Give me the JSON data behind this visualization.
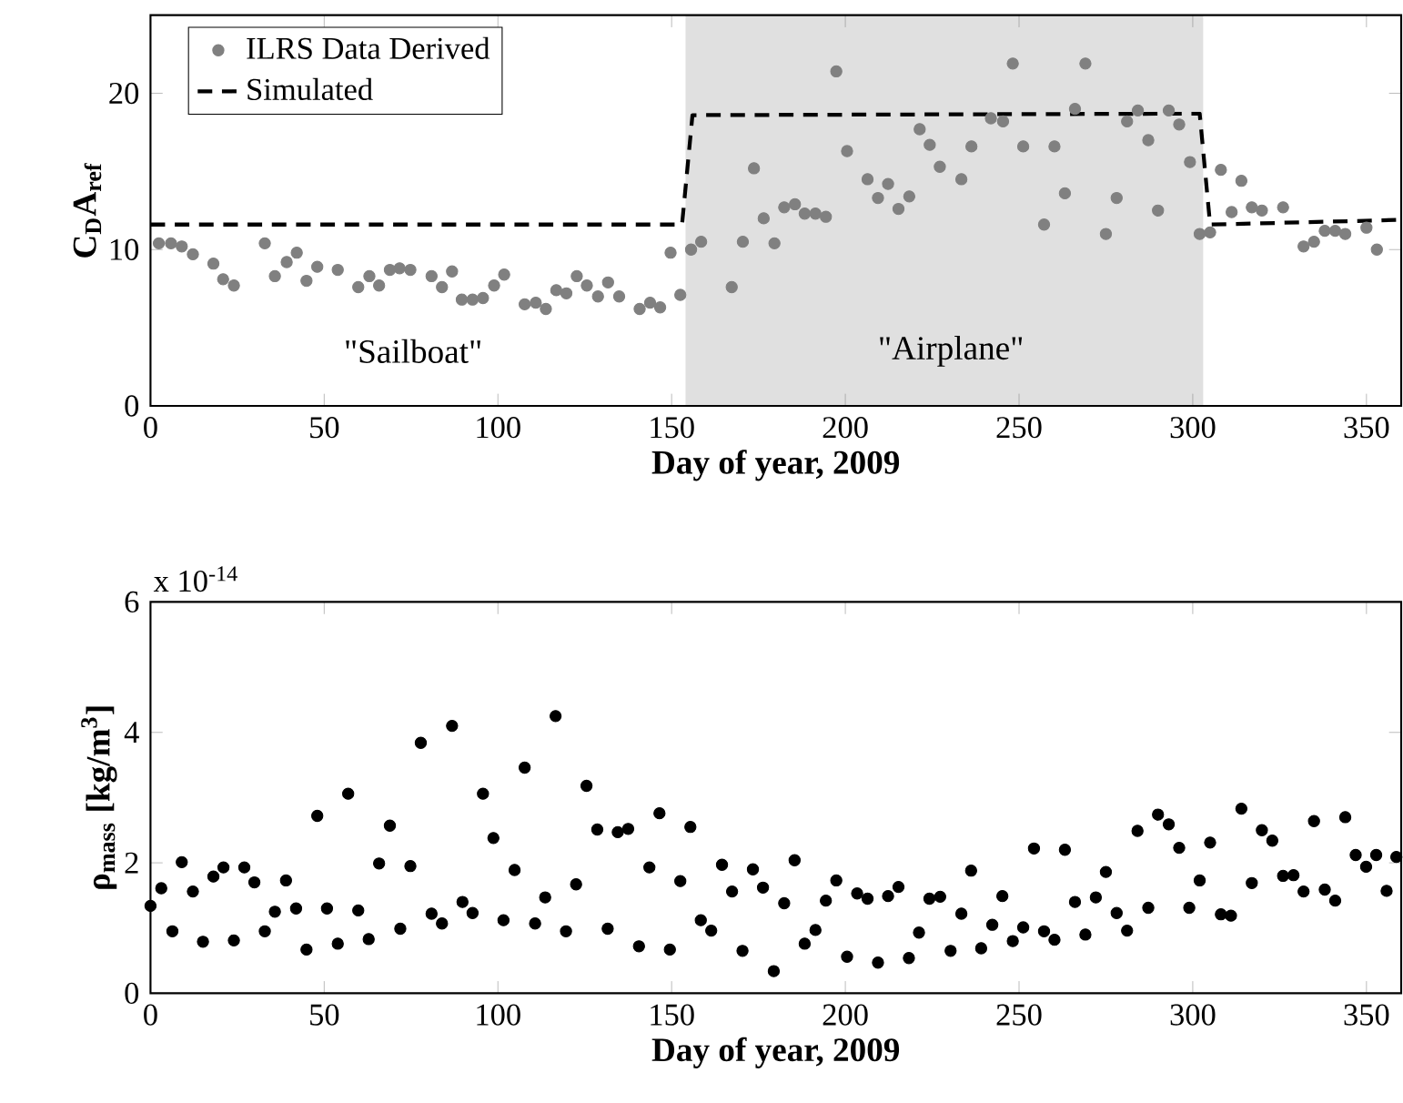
{
  "chart_data": [
    {
      "type": "scatter",
      "xlabel": "Day of year, 2009",
      "ylabel": "C$_{D}$A$_{ref}$",
      "xlim": [
        0,
        360
      ],
      "ylim": [
        0,
        25
      ],
      "xticks": [
        0,
        50,
        100,
        150,
        200,
        250,
        300,
        350
      ],
      "yticks": [
        0,
        10,
        20
      ],
      "legend": "top left",
      "marker": "circle",
      "bands": [
        {
          "axis": "x",
          "from": 154,
          "to": 303,
          "color": "#e0e0e0"
        }
      ],
      "annotations": [
        "\"Sailboat\"",
        "\"Airplane\""
      ],
      "series": [
        {
          "name": "ILRS Data Derived",
          "type": "scatter",
          "color": "#808080",
          "x": [
            2.4,
            5.9,
            9.0,
            12.2,
            18.1,
            20.9,
            24.0,
            32.9,
            35.8,
            39.2,
            42.1,
            44.9,
            48.0,
            53.9,
            59.8,
            63.0,
            65.8,
            68.9,
            71.7,
            74.8,
            80.9,
            83.9,
            86.8,
            89.6,
            92.7,
            95.7,
            98.9,
            101.8,
            107.7,
            110.9,
            113.8,
            116.8,
            119.7,
            122.7,
            125.6,
            128.8,
            131.7,
            134.9,
            140.8,
            143.8,
            146.7,
            149.7,
            152.5,
            155.6,
            158.5,
            167.3,
            170.5,
            173.7,
            176.5,
            179.6,
            182.4,
            185.5,
            188.3,
            191.4,
            194.4,
            197.4,
            200.5,
            206.4,
            209.4,
            212.3,
            215.3,
            218.4,
            221.4,
            224.3,
            227.2,
            233.4,
            236.3,
            241.9,
            245.4,
            248.2,
            251.2,
            257.2,
            260.2,
            263.2,
            266.1,
            269.1,
            275.0,
            278.1,
            281.1,
            284.2,
            287.2,
            290.0,
            293.1,
            296.1,
            299.2,
            302.0,
            305.0,
            308.1,
            311.2,
            314.0,
            317.0,
            319.9,
            326.0,
            331.9,
            334.9,
            338.0,
            341.0,
            343.9,
            350.0,
            353.0
          ],
          "values": [
            10.4,
            10.4,
            10.2,
            9.7,
            9.1,
            8.1,
            7.7,
            10.4,
            8.3,
            9.2,
            9.8,
            8.0,
            8.9,
            8.7,
            7.6,
            8.3,
            7.7,
            8.7,
            8.8,
            8.7,
            8.3,
            7.6,
            8.6,
            6.8,
            6.8,
            6.9,
            7.7,
            8.4,
            6.5,
            6.6,
            6.2,
            7.4,
            7.2,
            8.3,
            7.7,
            7.0,
            7.9,
            7.0,
            6.2,
            6.6,
            6.3,
            9.8,
            7.1,
            10.0,
            10.5,
            7.6,
            10.5,
            15.2,
            12.0,
            10.4,
            12.7,
            12.9,
            12.3,
            12.3,
            12.1,
            21.4,
            16.3,
            14.5,
            13.3,
            14.2,
            12.6,
            13.4,
            17.7,
            16.7,
            15.3,
            14.5,
            16.6,
            18.4,
            18.2,
            21.9,
            16.6,
            11.6,
            16.6,
            13.6,
            19.0,
            21.9,
            11.0,
            13.3,
            18.2,
            18.9,
            17.0,
            12.5,
            18.9,
            18.0,
            15.6,
            11.0,
            11.1,
            15.1,
            12.4,
            14.4,
            12.7,
            12.5,
            12.7,
            10.2,
            10.5,
            11.2,
            11.2,
            11.0,
            11.4,
            10.0
          ]
        },
        {
          "name": "Simulated",
          "type": "line",
          "color": "#000000",
          "line_style": "dashed",
          "marker": "none",
          "x": [
            0,
            153,
            156,
            302,
            305,
            360
          ],
          "values": [
            11.6,
            11.6,
            18.6,
            18.7,
            11.6,
            11.9
          ]
        }
      ]
    },
    {
      "type": "scatter",
      "xlabel": "Day of year, 2009",
      "ylabel": "ρ$_{mass}$ [kg/m$^{3}$]",
      "xlim": [
        0,
        360
      ],
      "ylim": [
        0,
        6
      ],
      "xticks": [
        0,
        50,
        100,
        150,
        200,
        250,
        300,
        350
      ],
      "yticks": [
        0,
        2,
        4,
        6
      ],
      "marker": "circle",
      "annotations": [
        "x 10$^{-14}$"
      ],
      "series": [
        {
          "color": "#000000",
          "x": [
            0.0,
            3.1,
            6.3,
            9.0,
            12.2,
            15.1,
            18.1,
            21.0,
            24.0,
            27.0,
            29.9,
            32.9,
            35.8,
            39.0,
            41.9,
            44.9,
            48.0,
            50.8,
            53.9,
            56.9,
            59.8,
            62.8,
            65.8,
            68.9,
            71.9,
            74.8,
            77.8,
            80.9,
            83.9,
            86.8,
            89.8,
            92.7,
            95.7,
            98.7,
            101.6,
            104.8,
            107.7,
            110.7,
            113.6,
            116.6,
            119.6,
            122.5,
            125.5,
            128.6,
            131.6,
            134.5,
            137.5,
            140.6,
            143.6,
            146.5,
            149.5,
            152.5,
            155.4,
            158.4,
            161.4,
            164.5,
            167.4,
            170.4,
            173.4,
            176.3,
            179.4,
            182.4,
            185.4,
            188.3,
            191.4,
            194.4,
            197.4,
            200.5,
            203.4,
            206.4,
            209.4,
            212.3,
            215.3,
            218.3,
            221.2,
            224.2,
            227.3,
            230.3,
            233.4,
            236.2,
            239.1,
            242.3,
            245.2,
            248.2,
            251.2,
            254.3,
            257.2,
            260.2,
            263.2,
            266.1,
            269.1,
            272.1,
            275.0,
            278.1,
            281.1,
            284.1,
            287.2,
            290.0,
            293.1,
            296.1,
            299.0,
            302.0,
            305.0,
            308.1,
            311.0,
            314.0,
            317.0,
            319.9,
            322.9,
            326.0,
            329.0,
            331.9,
            334.9,
            338.0,
            341.0,
            343.9,
            346.9,
            349.9,
            352.8,
            355.8,
            358.6
          ],
          "values": [
            1.34,
            1.61,
            0.95,
            2.01,
            1.56,
            0.79,
            1.79,
            1.93,
            0.81,
            1.93,
            1.7,
            0.95,
            1.25,
            1.73,
            1.3,
            0.67,
            2.72,
            1.3,
            0.76,
            3.06,
            1.27,
            0.83,
            1.99,
            2.57,
            0.99,
            1.95,
            3.84,
            1.22,
            1.07,
            4.1,
            1.4,
            1.23,
            3.06,
            2.38,
            1.12,
            1.89,
            3.46,
            1.07,
            1.47,
            4.25,
            0.95,
            1.67,
            3.18,
            2.51,
            0.99,
            2.47,
            2.52,
            0.72,
            1.93,
            2.76,
            0.67,
            1.72,
            2.55,
            1.12,
            0.96,
            1.97,
            1.56,
            0.65,
            1.9,
            1.62,
            0.34,
            1.38,
            2.04,
            0.76,
            0.97,
            1.42,
            1.73,
            0.56,
            1.53,
            1.45,
            0.47,
            1.49,
            1.63,
            0.54,
            0.93,
            1.45,
            1.48,
            0.65,
            1.22,
            1.88,
            0.69,
            1.05,
            1.49,
            0.8,
            1.01,
            2.22,
            0.95,
            0.82,
            2.2,
            1.4,
            0.9,
            1.47,
            1.86,
            1.23,
            0.96,
            2.49,
            1.31,
            2.74,
            2.59,
            2.23,
            1.31,
            1.73,
            2.31,
            1.21,
            1.19,
            2.83,
            1.69,
            2.5,
            2.34,
            1.8,
            1.81,
            1.56,
            2.64,
            1.59,
            1.42,
            2.7,
            2.12,
            1.94,
            2.12,
            1.57,
            2.09
          ]
        }
      ]
    }
  ]
}
